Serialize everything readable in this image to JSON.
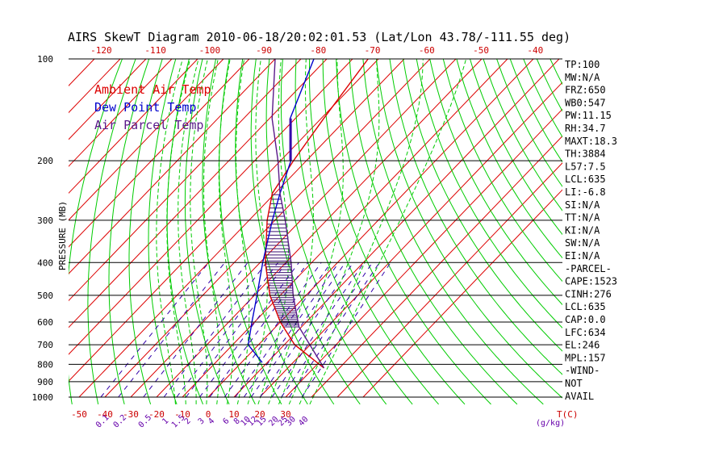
{
  "chart_data": {
    "type": "line",
    "title": "AIRS SkewT Diagram 2010-06-18/20:02:01.53 (Lat/Lon 43.78/-111.55 deg)",
    "ylabel": "PRESSURE (MB)",
    "xlabel": "T(C)",
    "mixing_ratio_unit": "(g/kg)",
    "y_scale": "log",
    "ylim": [
      1000,
      100
    ],
    "xlim_bottom": [
      -55,
      42
    ],
    "pressure_ticks": [
      100,
      200,
      300,
      400,
      500,
      600,
      700,
      800,
      900,
      1000
    ],
    "pressure_tick_labels": [
      "100",
      "200",
      "300",
      "400",
      "500",
      "600",
      "700",
      "800",
      "900",
      "1000"
    ],
    "bottom_temp_ticks": [
      -50,
      -40,
      -30,
      -20,
      -10,
      0,
      10,
      20,
      30
    ],
    "bottom_temp_labels": [
      "-50",
      "-40",
      "-30",
      "-20",
      "-10",
      "0",
      "10",
      "20",
      "30"
    ],
    "top_temp_ticks": [
      -120,
      -110,
      -100,
      -90,
      -80,
      -70,
      -60,
      -50,
      -40
    ],
    "top_temp_labels": [
      "-120",
      "-110",
      "-100",
      "-90",
      "-80",
      "-70",
      "-60",
      "-50",
      "-40"
    ],
    "mixing_ratio_labels": [
      "0.1",
      "0.2",
      "0.5",
      "1",
      "1.5",
      "2",
      "3",
      "4",
      "6",
      "8",
      "10",
      "12",
      "15",
      "20",
      "25",
      "30",
      "40"
    ],
    "legend": [
      {
        "label": "Ambient Air Temp",
        "color": "#dd0000"
      },
      {
        "label": "Dew Point Temp",
        "color": "#0000cc"
      },
      {
        "label": "Air Parcel Temp",
        "color": "#5a1a8a"
      }
    ],
    "series": [
      {
        "name": "Ambient Air Temp",
        "color": "#dd0000",
        "points": [
          [
            820,
            34
          ],
          [
            700,
            14
          ],
          [
            600,
            0
          ],
          [
            500,
            -14
          ],
          [
            400,
            -28
          ],
          [
            300,
            -43
          ],
          [
            250,
            -51
          ],
          [
            200,
            -55
          ],
          [
            150,
            -59
          ],
          [
            100,
            -64
          ]
        ]
      },
      {
        "name": "Dew Point Temp",
        "color": "#0000cc",
        "points": [
          [
            790,
            8
          ],
          [
            700,
            -4
          ],
          [
            600,
            -11
          ],
          [
            500,
            -19
          ],
          [
            400,
            -29
          ],
          [
            300,
            -41
          ],
          [
            250,
            -48
          ],
          [
            200,
            -56
          ],
          [
            170,
            -65
          ],
          [
            150,
            -72
          ],
          [
            100,
            -85
          ]
        ]
      },
      {
        "name": "Air Parcel Temp",
        "color": "#5a1a8a",
        "points": [
          [
            820,
            34
          ],
          [
            620,
            9
          ],
          [
            500,
            -5
          ],
          [
            400,
            -18
          ],
          [
            300,
            -36
          ],
          [
            250,
            -48
          ],
          [
            200,
            -61
          ],
          [
            150,
            -79
          ],
          [
            100,
            -100
          ]
        ]
      }
    ],
    "stats": [
      "TP:100",
      "MW:N/A",
      "FRZ:650",
      "WB0:547",
      "PW:11.15",
      "RH:34.7",
      "MAXT:18.3",
      "TH:3884",
      "L57:7.5",
      "LCL:635",
      "LI:-6.8",
      "SI:N/A",
      "TT:N/A",
      "KI:N/A",
      "SW:N/A",
      "EI:N/A",
      "-PARCEL-",
      "CAPE:1523",
      "CINH:276",
      "LCL:635",
      "CAP:0.0",
      "LFC:634",
      "EL:246",
      "MPL:157",
      "-WIND-",
      "NOT",
      "AVAIL"
    ]
  },
  "colors": {
    "isotherm": "#dd0000",
    "dry_adiabat": "#00cc00",
    "moist_adiabat": "#00cc00",
    "mixing_ratio": "#3300aa",
    "isobar": "#000000",
    "cape_hatch": "#3a1070"
  }
}
